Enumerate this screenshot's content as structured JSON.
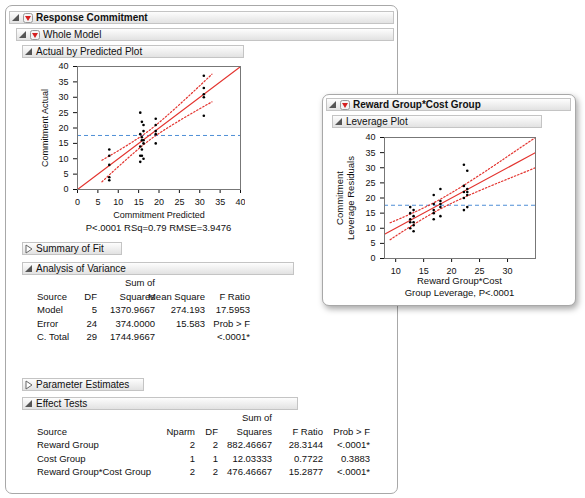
{
  "report": {
    "title": "Response Commitment",
    "whole_model": "Whole Model",
    "actual_by_predicted": "Actual by Predicted Plot",
    "summary_of_fit": "Summary of Fit",
    "analysis_of_variance": {
      "title": "Analysis of Variance",
      "header_top": [
        null,
        null,
        "Sum of",
        null,
        null
      ],
      "columns": [
        "Source",
        "DF",
        "Squares",
        "Mean Square",
        "F Ratio"
      ],
      "rows": [
        [
          "Model",
          "5",
          "1370.9667",
          "274.193",
          "17.5953"
        ],
        [
          "Error",
          "24",
          "374.0000",
          "15.583",
          "Prob > F"
        ],
        [
          "C. Total",
          "29",
          "1744.9667",
          null,
          "<.0001*"
        ]
      ]
    },
    "parameter_estimates": "Parameter Estimates",
    "effect_tests": {
      "title": "Effect Tests",
      "header_top": [
        null,
        null,
        null,
        "Sum of",
        null,
        null
      ],
      "columns": [
        "Source",
        "Nparm",
        "DF",
        "Squares",
        "F Ratio",
        "Prob > F"
      ],
      "rows": [
        [
          "Reward Group",
          "2",
          "2",
          "882.46667",
          "28.3144",
          "<.0001*"
        ],
        [
          "Cost Group",
          "1",
          "1",
          "12.03333",
          "0.7722",
          "0.3883"
        ],
        [
          "Reward Group*Cost Group",
          "2",
          "2",
          "476.46667",
          "15.2877",
          "<.0001*"
        ]
      ]
    },
    "leverage_window": {
      "title": "Reward Group*Cost Group",
      "leverage_plot": "Leverage Plot"
    }
  },
  "chart_data": [
    {
      "type": "scatter",
      "x_label": "Commitment Predicted",
      "y_label": "Commitment Actual",
      "caption": "P<.0001 RSq=0.79 RMSE=3.9476",
      "xlim": [
        0,
        40
      ],
      "xticks": [
        0,
        5,
        10,
        15,
        20,
        25,
        30,
        35,
        40
      ],
      "ylim": [
        0,
        40
      ],
      "yticks": [
        0,
        5,
        10,
        15,
        20,
        25,
        30,
        35,
        40
      ],
      "marker": "dot",
      "color": "#000000",
      "x": [
        7.8,
        7.8,
        7.8,
        7.8,
        7.8,
        15.4,
        15.4,
        15.4,
        15.4,
        15.4,
        15.8,
        15.8,
        15.8,
        15.8,
        15.8,
        16.2,
        16.2,
        16.2,
        16.2,
        16.2,
        19.2,
        19.2,
        19.2,
        19.2,
        19.2,
        31,
        31,
        31,
        31,
        31
      ],
      "values": [
        13,
        11,
        8,
        4,
        3,
        25,
        18,
        14,
        11,
        9,
        22,
        17,
        16,
        13,
        11,
        21,
        19,
        16,
        15,
        10,
        23,
        21,
        19,
        18,
        15,
        37,
        33,
        31,
        30,
        24
      ],
      "fit_line": {
        "x": [
          0,
          40
        ],
        "values": [
          0,
          40
        ],
        "color": "#e3342f",
        "line_style": "solid"
      },
      "confidence_upper": {
        "x": [
          6,
          10,
          14,
          17.5,
          21,
          25,
          29,
          33
        ],
        "values": [
          9.5,
          12.6,
          15.9,
          19.1,
          22.9,
          27.6,
          32.5,
          37.5
        ],
        "color": "#e3342f",
        "line_style": "dotted"
      },
      "confidence_lower": {
        "x": [
          6,
          10,
          14,
          17.5,
          21,
          25,
          29,
          33
        ],
        "values": [
          2.5,
          7.4,
          12.1,
          15.9,
          19.1,
          22.4,
          25.5,
          28.5
        ],
        "color": "#e3342f",
        "line_style": "dotted"
      },
      "mean_line": {
        "value": 17.567,
        "color": "#4f8fd6",
        "line_style": "dashed"
      }
    },
    {
      "type": "scatter",
      "x_label": [
        "Reward Group*Cost",
        "Group Leverage, P<.0001"
      ],
      "y_label": [
        "Commitment",
        "Leverage Residuals"
      ],
      "xlim": [
        8,
        35
      ],
      "xticks": [
        10,
        15,
        20,
        25,
        30
      ],
      "ylim": [
        0,
        40
      ],
      "yticks": [
        0,
        5,
        10,
        15,
        20,
        25,
        30,
        35,
        40
      ],
      "marker": "dot",
      "color": "#000000",
      "x": [
        12.6,
        12.6,
        12.6,
        12.6,
        12.6,
        13.2,
        13.2,
        13.2,
        13.2,
        13.2,
        16.8,
        16.8,
        16.8,
        16.8,
        16.8,
        18,
        18,
        18,
        18,
        18,
        22.2,
        22.2,
        22.2,
        22.2,
        22.2,
        22.8,
        22.8,
        22.8,
        22.8,
        22.8
      ],
      "values": [
        17,
        15,
        13,
        12,
        10,
        16,
        14,
        12,
        11,
        9,
        21,
        18,
        16,
        15,
        13,
        23,
        19,
        18,
        17,
        14,
        31,
        24,
        22,
        20,
        16,
        29,
        23,
        22,
        21,
        17
      ],
      "fit_line": {
        "x": [
          8,
          35
        ],
        "values": [
          8,
          35
        ],
        "color": "#e3342f",
        "line_style": "solid"
      },
      "confidence_upper": {
        "x": [
          9,
          13,
          17.5,
          22,
          27,
          31,
          35
        ],
        "values": [
          11.8,
          15.0,
          19.1,
          24.0,
          30.0,
          35.0,
          40.0
        ],
        "color": "#e3342f",
        "line_style": "dotted"
      },
      "confidence_lower": {
        "x": [
          9,
          13,
          17.5,
          22,
          27,
          31,
          35
        ],
        "values": [
          6.2,
          11.0,
          15.9,
          20.0,
          24.0,
          27.0,
          30.0
        ],
        "color": "#e3342f",
        "line_style": "dotted"
      },
      "mean_line": {
        "value": 17.6,
        "color": "#4f8fd6",
        "line_style": "dashed"
      }
    }
  ]
}
